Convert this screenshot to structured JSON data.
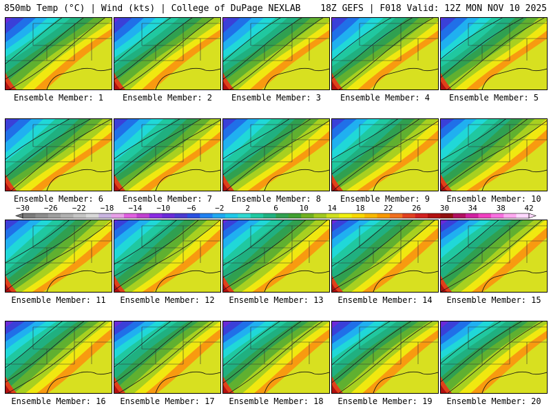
{
  "header": {
    "left": "850mb Temp (°C) | Wind (kts) | College of DuPage NEXLAB",
    "right": "18Z GEFS | F018 Valid: 12Z MON NOV 10 2025"
  },
  "members": [
    "Ensemble Member: 1",
    "Ensemble Member: 2",
    "Ensemble Member: 3",
    "Ensemble Member: 4",
    "Ensemble Member: 5",
    "Ensemble Member: 6",
    "Ensemble Member: 7",
    "Ensemble Member: 8",
    "Ensemble Member: 9",
    "Ensemble Member: 10",
    "Ensemble Member: 11",
    "Ensemble Member: 12",
    "Ensemble Member: 13",
    "Ensemble Member: 14",
    "Ensemble Member: 15",
    "Ensemble Member: 16",
    "Ensemble Member: 17",
    "Ensemble Member: 18",
    "Ensemble Member: 19",
    "Ensemble Member: 20"
  ],
  "colorbar": {
    "tick_labels": [
      "−30",
      "−26",
      "−22",
      "−18",
      "−14",
      "−10",
      "−6",
      "−2",
      "2",
      "6",
      "10",
      "14",
      "18",
      "22",
      "26",
      "30",
      "34",
      "38",
      "42"
    ],
    "colors": [
      "#7a7a7a",
      "#8c8c8c",
      "#9e9e9e",
      "#b0b0b0",
      "#c4c4c4",
      "#d8d8d8",
      "#c8b4e0",
      "#e8a0e8",
      "#e060e0",
      "#c040d0",
      "#8a2be2",
      "#6a2ad8",
      "#4a3ad0",
      "#2a50e0",
      "#2080f0",
      "#20a8f0",
      "#20c8e8",
      "#30d8d0",
      "#20c8a0",
      "#20b080",
      "#30a050",
      "#40a030",
      "#70b020",
      "#a0c820",
      "#d0e020",
      "#f0f010",
      "#f8d800",
      "#f8b800",
      "#f89800",
      "#f07020",
      "#e04020",
      "#d02020",
      "#b01010",
      "#901010",
      "#b01060",
      "#d020a0",
      "#f040c0",
      "#f870e0",
      "#ffa8f0",
      "#ffd8ff"
    ]
  }
}
